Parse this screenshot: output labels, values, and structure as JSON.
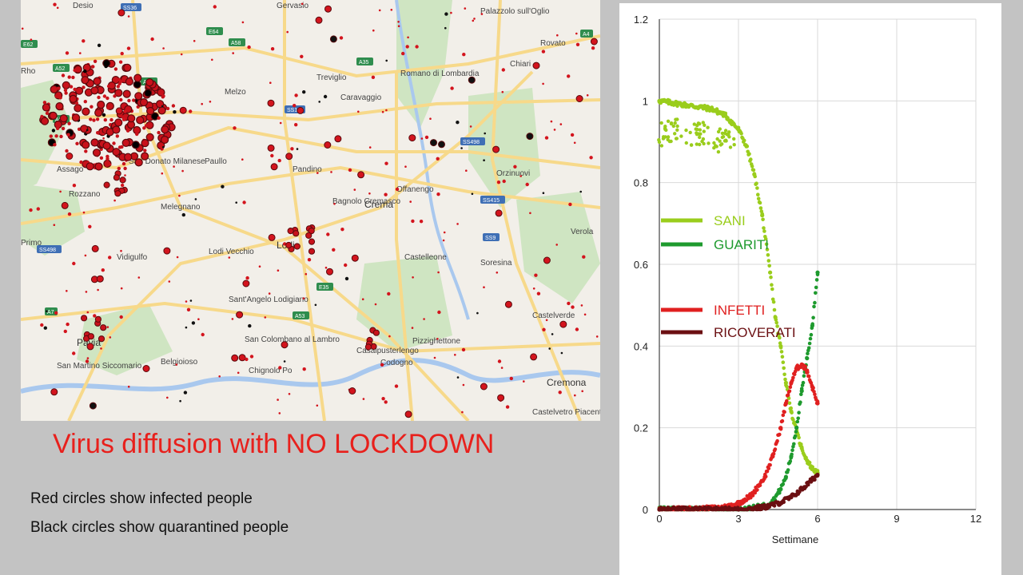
{
  "caption": {
    "title": "Virus diffusion with NO LOCKDOWN",
    "red_note": "Red circles show infected people",
    "black_note": "Black circles show quarantined people"
  },
  "map": {
    "places": [
      "Desio",
      "Gervasio",
      "Palazzolo sull'Oglio",
      "Rovato",
      "Rho",
      "Chiari",
      "Treviglio",
      "Romano di Lombardia",
      "Caravaggio",
      "Melzo",
      "San Donato Milanese",
      "Assago",
      "Rozzano",
      "Paullo",
      "Pandino",
      "Offanengo",
      "Orzinuovi",
      "Bagnolo Cremasco",
      "Crema",
      "Melegnano",
      "Primo",
      "Vidigulfo",
      "Lodi Vecchio",
      "Lodi",
      "Castelleone",
      "Soresina",
      "Verola",
      "Sant'Angelo Lodigiano",
      "San Colombano al Lambro",
      "Pizzighettone",
      "Castelverde",
      "Pavia",
      "San Martino Siccomario",
      "Belgioioso",
      "Chignolo Po",
      "Casalpusterlengo",
      "Codogno",
      "Cremona",
      "Castelvetro Piacentino"
    ],
    "roads": [
      "SS36",
      "E64",
      "E62",
      "A52",
      "A58",
      "A4",
      "A35",
      "A51",
      "SS11",
      "A50",
      "SS498",
      "SS415",
      "SS9",
      "E35",
      "A53",
      "A7",
      "SS498"
    ]
  },
  "chart_data": {
    "type": "scatter",
    "xlabel": "Settimane",
    "ylabel": "",
    "xlim": [
      0,
      12
    ],
    "ylim": [
      0,
      1.2
    ],
    "x_ticks": [
      "0",
      "3",
      "6",
      "9",
      "12"
    ],
    "y_ticks": [
      "0",
      "0.2",
      "0.4",
      "0.6",
      "0.8",
      "1",
      "1.2"
    ],
    "grid": true,
    "legend_position": "left",
    "series": [
      {
        "name": "SANI",
        "color": "#9acd1c",
        "points": [
          [
            0,
            1.0
          ],
          [
            0.5,
            0.995
          ],
          [
            1.0,
            0.99
          ],
          [
            1.5,
            0.985
          ],
          [
            2.0,
            0.98
          ],
          [
            2.5,
            0.965
          ],
          [
            3.0,
            0.93
          ],
          [
            3.3,
            0.89
          ],
          [
            3.6,
            0.82
          ],
          [
            3.9,
            0.72
          ],
          [
            4.2,
            0.58
          ],
          [
            4.4,
            0.47
          ],
          [
            4.6,
            0.4
          ],
          [
            4.8,
            0.31
          ],
          [
            5.0,
            0.24
          ],
          [
            5.2,
            0.19
          ],
          [
            5.4,
            0.15
          ],
          [
            5.6,
            0.12
          ],
          [
            5.8,
            0.1
          ],
          [
            6.0,
            0.09
          ]
        ]
      },
      {
        "name": "GUARITI",
        "color": "#1e9a2e",
        "points": [
          [
            0,
            0.0
          ],
          [
            3.0,
            0.0
          ],
          [
            3.5,
            0.003
          ],
          [
            4.0,
            0.01
          ],
          [
            4.3,
            0.02
          ],
          [
            4.6,
            0.05
          ],
          [
            4.8,
            0.08
          ],
          [
            5.0,
            0.13
          ],
          [
            5.2,
            0.2
          ],
          [
            5.4,
            0.29
          ],
          [
            5.6,
            0.37
          ],
          [
            5.8,
            0.45
          ],
          [
            6.0,
            0.58
          ]
        ]
      },
      {
        "name": "INFETTI",
        "color": "#e02020",
        "points": [
          [
            0,
            0.0
          ],
          [
            1.5,
            0.001
          ],
          [
            2.0,
            0.003
          ],
          [
            2.5,
            0.006
          ],
          [
            3.0,
            0.015
          ],
          [
            3.5,
            0.035
          ],
          [
            4.0,
            0.08
          ],
          [
            4.3,
            0.13
          ],
          [
            4.6,
            0.2
          ],
          [
            4.8,
            0.26
          ],
          [
            5.0,
            0.31
          ],
          [
            5.2,
            0.345
          ],
          [
            5.4,
            0.355
          ],
          [
            5.6,
            0.34
          ],
          [
            5.8,
            0.3
          ],
          [
            6.0,
            0.26
          ]
        ]
      },
      {
        "name": "RICOVERATI",
        "color": "#6b0f12",
        "points": [
          [
            0,
            0.0
          ],
          [
            3.0,
            0.0
          ],
          [
            3.5,
            0.002
          ],
          [
            4.0,
            0.006
          ],
          [
            4.5,
            0.015
          ],
          [
            5.0,
            0.03
          ],
          [
            5.5,
            0.055
          ],
          [
            6.0,
            0.085
          ]
        ]
      }
    ]
  }
}
